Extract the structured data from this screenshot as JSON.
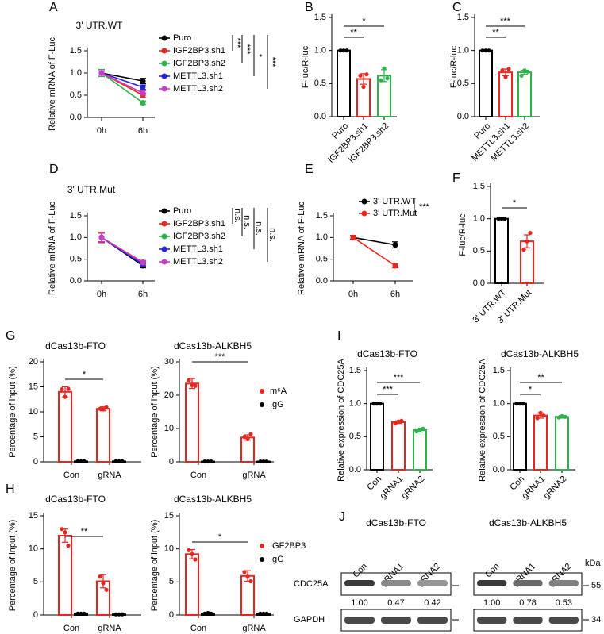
{
  "chart_data": [
    {
      "type": "line",
      "panel": "A",
      "title": "3' UTR.WT",
      "y_label": "Relative mRNA of F-Luc",
      "categories": [
        "0h",
        "6h"
      ],
      "ylim": [
        0,
        1.5
      ],
      "yticks": [
        {
          "value": 0,
          "label": "0.0"
        },
        0.5,
        {
          "value": 1,
          "label": "1.0"
        },
        1.5
      ],
      "series": [
        {
          "name": "Puro",
          "color": "#000000",
          "values": [
            1.0,
            0.82
          ],
          "errors": [
            0.05,
            0.06
          ]
        },
        {
          "name": "IGF2BP3.sh1",
          "color": "#e8251f",
          "values": [
            1.0,
            0.5
          ],
          "errors": [
            0.05,
            0.05
          ]
        },
        {
          "name": "IGF2BP3.sh2",
          "color": "#2db34a",
          "values": [
            1.0,
            0.33
          ],
          "errors": [
            0.08,
            0.04
          ]
        },
        {
          "name": "METTL3.sh1",
          "color": "#2323e0",
          "values": [
            1.0,
            0.68
          ],
          "errors": [
            0.05,
            0.05
          ]
        },
        {
          "name": "METTL3.sh2",
          "color": "#c83cc8",
          "values": [
            1.0,
            0.55
          ],
          "errors": [
            0.05,
            0.05
          ]
        }
      ],
      "annotations": [
        "***",
        "***",
        "*",
        "***"
      ]
    },
    {
      "type": "bar",
      "panel": "B",
      "y_label": "F-luc/R-luc",
      "categories": [
        "Puro",
        "IGF2BP3.sh1",
        "IGF2BP3.sh2"
      ],
      "ylim": [
        0,
        1.5
      ],
      "yticks": [
        {
          "value": 0,
          "label": "0.0"
        },
        0.5,
        {
          "value": 1,
          "label": "1.0"
        },
        1.5
      ],
      "values": [
        1.0,
        0.57,
        0.62
      ],
      "errors": [
        0,
        0.08,
        0.09
      ],
      "colors": [
        "#000000",
        "#e8251f",
        "#2db34a"
      ],
      "points": [
        [
          1,
          1,
          1
        ],
        [
          0.62,
          0.45,
          0.64
        ],
        [
          0.55,
          0.73,
          0.58
        ]
      ],
      "annotations": [
        "**",
        "*"
      ]
    },
    {
      "type": "bar",
      "panel": "C",
      "y_label": "F-luc/R-luc",
      "categories": [
        "Puro",
        "METTL3.sh1",
        "METTL3.sh2"
      ],
      "ylim": [
        0,
        1.5
      ],
      "yticks": [
        {
          "value": 0,
          "label": "0.0"
        },
        0.5,
        {
          "value": 1,
          "label": "1.0"
        },
        1.5
      ],
      "values": [
        1.0,
        0.67,
        0.67
      ],
      "errors": [
        0,
        0.05,
        0.03
      ],
      "colors": [
        "#000000",
        "#e8251f",
        "#2db34a"
      ],
      "points": [
        [
          1,
          1,
          1
        ],
        [
          0.7,
          0.6,
          0.72
        ],
        [
          0.62,
          0.7,
          0.68
        ]
      ],
      "annotations": [
        "**",
        "***"
      ]
    },
    {
      "type": "line",
      "panel": "D",
      "title": "3' UTR.Mut",
      "y_label": "Relative mRNA of F-Luc",
      "categories": [
        "0h",
        "6h"
      ],
      "ylim": [
        0,
        1.5
      ],
      "yticks": [
        {
          "value": 0,
          "label": "0.0"
        },
        0.5,
        {
          "value": 1,
          "label": "1.0"
        },
        1.5
      ],
      "series": [
        {
          "name": "Puro",
          "color": "#000000",
          "values": [
            1.0,
            0.35
          ],
          "errors": [
            0.1,
            0.05
          ]
        },
        {
          "name": "IGF2BP3.sh1",
          "color": "#e8251f",
          "values": [
            1.0,
            0.43
          ],
          "errors": [
            0.12,
            0.04
          ]
        },
        {
          "name": "IGF2BP3.sh2",
          "color": "#2db34a",
          "values": [
            1.0,
            0.4
          ],
          "errors": [
            0.1,
            0.04
          ]
        },
        {
          "name": "METTL3.sh1",
          "color": "#2323e0",
          "values": [
            1.0,
            0.38
          ],
          "errors": [
            0.1,
            0.04
          ]
        },
        {
          "name": "METTL3.sh2",
          "color": "#c83cc8",
          "values": [
            1.0,
            0.42
          ],
          "errors": [
            0.1,
            0.04
          ]
        }
      ],
      "annotations": [
        "n.s.",
        "n.s.",
        "n.s.",
        "n.s."
      ]
    },
    {
      "type": "line",
      "panel": "E",
      "y_label": "Relative mRNA of F-Luc",
      "categories": [
        "0h",
        "6h"
      ],
      "ylim": [
        0,
        1.5
      ],
      "yticks": [
        {
          "value": 0,
          "label": "0.0"
        },
        0.5,
        {
          "value": 1,
          "label": "1.0"
        },
        1.5
      ],
      "series": [
        {
          "name": "3' UTR.WT",
          "color": "#000000",
          "values": [
            1.0,
            0.83
          ],
          "errors": [
            0.04,
            0.07
          ]
        },
        {
          "name": "3' UTR.Mut",
          "color": "#e8251f",
          "values": [
            1.0,
            0.35
          ],
          "errors": [
            0.05,
            0.05
          ]
        }
      ],
      "annotations": [
        "***"
      ]
    },
    {
      "type": "bar",
      "panel": "F",
      "y_label": "F-luc/R-luc",
      "categories": [
        "3' UTR.WT",
        "3' UTR.Mut"
      ],
      "ylim": [
        0,
        1.5
      ],
      "yticks": [
        {
          "value": 0,
          "label": "0.0"
        },
        0.5,
        {
          "value": 1,
          "label": "1.0"
        },
        1.5
      ],
      "values": [
        1.0,
        0.65
      ],
      "errors": [
        0,
        0.1
      ],
      "colors": [
        "#000000",
        "#e8251f"
      ],
      "points": [
        [
          1,
          1,
          1
        ],
        [
          0.52,
          0.65,
          0.78
        ]
      ],
      "annotations": [
        "*"
      ]
    },
    {
      "type": "grouped_bar",
      "panel": "G",
      "title": "dCas13b-FTO",
      "y_label": "Percentage of input (%)",
      "categories": [
        "Con",
        "gRNA"
      ],
      "ylim": [
        0,
        20
      ],
      "yticks": [
        0,
        5,
        10,
        15,
        20
      ],
      "series": [
        {
          "name": "m⁶A",
          "color": "#e8251f",
          "values": [
            14,
            10.6
          ],
          "errors": [
            1,
            0.4
          ],
          "points": [
            [
              14.5,
              13,
              14.6
            ],
            [
              10.6,
              10.5,
              10.9
            ]
          ]
        },
        {
          "name": "IgG",
          "color": "#000000",
          "values": [
            0.1,
            0.1
          ],
          "errors": [
            0,
            0
          ],
          "points": [
            [
              0.1,
              0.1,
              0.1
            ],
            [
              0.1,
              0.1,
              0.1
            ]
          ]
        }
      ],
      "annotations": [
        "*"
      ]
    },
    {
      "type": "grouped_bar",
      "title": "dCas13b-ALKBH5",
      "y_label": "Percentage of input (%)",
      "categories": [
        "Con",
        "gRNA"
      ],
      "ylim": [
        0,
        30
      ],
      "yticks": [
        0,
        10,
        20,
        30
      ],
      "legend": true,
      "series": [
        {
          "name": "m⁶A",
          "color": "#e8251f",
          "values": [
            23.5,
            7.3
          ],
          "errors": [
            1.5,
            0.8
          ],
          "points": [
            [
              24.5,
              23,
              22.8
            ],
            [
              7.5,
              6.8,
              8.3
            ]
          ]
        },
        {
          "name": "IgG",
          "color": "#000000",
          "values": [
            0.1,
            0.1
          ],
          "errors": [
            0,
            0
          ],
          "points": [
            [
              0.1,
              0.1,
              0.1
            ],
            [
              0.1,
              0.1,
              0.1
            ]
          ]
        }
      ],
      "annotations": [
        "***"
      ]
    },
    {
      "type": "grouped_bar",
      "panel": "H",
      "title": "dCas13b-FTO",
      "y_label": "Percentage of input (%)",
      "categories": [
        "Con",
        "gRNA"
      ],
      "ylim": [
        0,
        15
      ],
      "yticks": [
        0,
        5,
        10,
        15
      ],
      "series": [
        {
          "name": "IGF2BP3",
          "color": "#e8251f",
          "values": [
            12,
            5.1
          ],
          "errors": [
            1,
            1
          ],
          "points": [
            [
              13,
              12.5,
              10.5
            ],
            [
              5.8,
              4.8,
              3.8
            ]
          ]
        },
        {
          "name": "IgG",
          "color": "#000000",
          "values": [
            0.2,
            0.1
          ],
          "errors": [
            0,
            0
          ],
          "points": [
            [
              0.2,
              0.2,
              0.2
            ],
            [
              0.1,
              0.1,
              0.1
            ]
          ]
        }
      ],
      "annotations": [
        "**"
      ]
    },
    {
      "type": "grouped_bar",
      "title": "dCas13b-ALKBH5",
      "y_label": "Percentage of input (%)",
      "categories": [
        "Con",
        "gRNA"
      ],
      "ylim": [
        0,
        15
      ],
      "yticks": [
        0,
        5,
        10,
        15
      ],
      "legend": true,
      "series": [
        {
          "name": "IGF2BP3",
          "color": "#e8251f",
          "values": [
            9.2,
            5.9
          ],
          "errors": [
            0.7,
            0.8
          ],
          "points": [
            [
              9.8,
              9.2,
              8.4
            ],
            [
              6.5,
              5.8,
              5.1
            ]
          ]
        },
        {
          "name": "IgG",
          "color": "#000000",
          "values": [
            0.2,
            0.2
          ],
          "errors": [
            0,
            0
          ],
          "points": [
            [
              0.2,
              0.3,
              0.2
            ],
            [
              0.2,
              0.2,
              0.2
            ]
          ]
        }
      ],
      "annotations": [
        "*"
      ]
    },
    {
      "type": "bar",
      "panel": "I",
      "title": "dCas13b-FTO",
      "y_label": "Relative expression of CDC25A",
      "categories": [
        "Con",
        "gRNA1",
        "gRNA2"
      ],
      "ylim": [
        0,
        1.5
      ],
      "yticks": [
        {
          "value": 0,
          "label": "0.0"
        },
        0.5,
        {
          "value": 1,
          "label": "1.0"
        },
        1.5
      ],
      "values": [
        1.0,
        0.72,
        0.6
      ],
      "errors": [
        0,
        0.02,
        0.03
      ],
      "colors": [
        "#000000",
        "#e8251f",
        "#2db34a"
      ],
      "points": [
        [
          1,
          1,
          1
        ],
        [
          0.7,
          0.73,
          0.74
        ],
        [
          0.58,
          0.6,
          0.62
        ]
      ],
      "annotations": [
        "***",
        "***"
      ]
    },
    {
      "type": "bar",
      "title": "dCas13b-ALKBH5",
      "y_label": "Relative expression of CDC25A",
      "categories": [
        "Con",
        "gRNA1",
        "gRNA2"
      ],
      "ylim": [
        0,
        1.5
      ],
      "yticks": [
        {
          "value": 0,
          "label": "0.0"
        },
        0.5,
        {
          "value": 1,
          "label": "1.0"
        },
        1.5
      ],
      "values": [
        1.0,
        0.82,
        0.8
      ],
      "errors": [
        0,
        0.04,
        0.02
      ],
      "colors": [
        "#000000",
        "#e8251f",
        "#2db34a"
      ],
      "points": [
        [
          1,
          1,
          1
        ],
        [
          0.78,
          0.86,
          0.82
        ],
        [
          0.79,
          0.81,
          0.8
        ]
      ],
      "annotations": [
        "*",
        "**"
      ]
    }
  ],
  "blot": {
    "panel": "J",
    "titles": [
      "dCas13b-FTO",
      "dCas13b-ALKBH5"
    ],
    "lanes": [
      [
        "Con",
        "gRNA1",
        "gRNA2"
      ],
      [
        "Con",
        "gRNA1",
        "gRNA2"
      ]
    ],
    "proteins": [
      "CDC25A",
      "GAPDH"
    ],
    "ratios": [
      [
        "1.00",
        "0.47",
        "0.42"
      ],
      [
        "1.00",
        "0.78",
        "0.53"
      ]
    ],
    "unit": "kDa",
    "markers": [
      "55",
      "34"
    ]
  }
}
